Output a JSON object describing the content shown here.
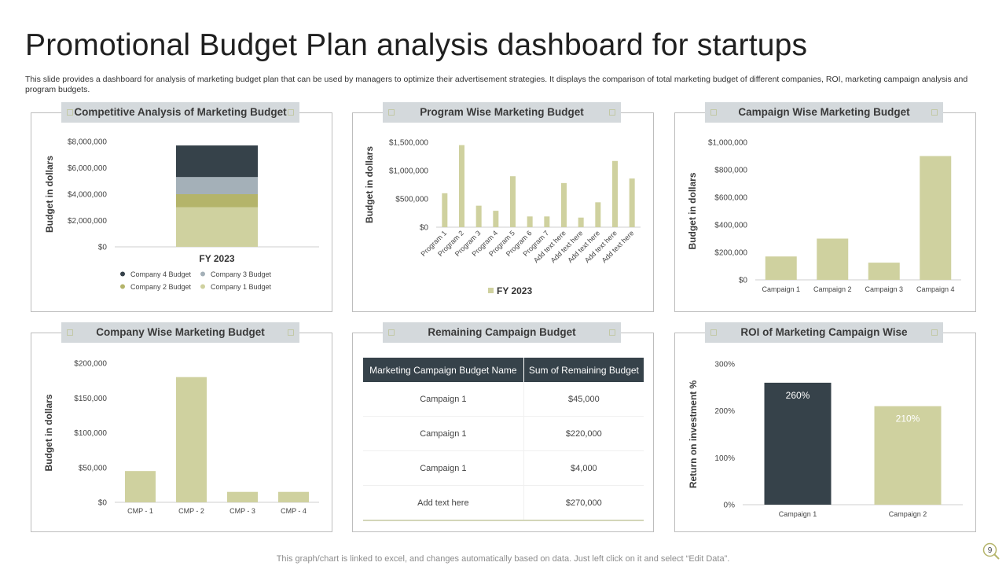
{
  "page": {
    "title": "Promotional Budget Plan analysis dashboard for startups",
    "subtitle": "This slide provides a dashboard for analysis of marketing budget plan that can be used by managers to optimize their advertisement strategies. It displays the comparison of total marketing budget of different companies, ROI, marketing campaign analysis and program budgets.",
    "footer": "This graph/chart is linked to excel,  and changes automatically based on data. Just left click on it and select “Edit Data”.",
    "page_number": "9"
  },
  "colors": {
    "khaki": "#cfd19f",
    "olive": "#b4b46a",
    "slate": "#36424a",
    "gray_blue": "#a4b0b8",
    "header_bg": "#d4d9dc"
  },
  "panels": {
    "competitive": {
      "header": "Competitive Analysis  of Marketing Budget"
    },
    "program": {
      "header": "Program Wise Marketing Budget"
    },
    "campaign": {
      "header": "Campaign Wise Marketing Budget"
    },
    "company": {
      "header": "Company Wise Marketing Budget"
    },
    "remaining": {
      "header": "Remaining Campaign Budget"
    },
    "roi": {
      "header": "ROI of Marketing Campaign Wise"
    }
  },
  "chart_data": [
    {
      "id": "competitive",
      "type": "bar",
      "stacked": true,
      "title": "Competitive Analysis  of Marketing Budget",
      "categories": [
        "FY 2023"
      ],
      "series": [
        {
          "name": "Company 1 Budget",
          "values": [
            3000000
          ],
          "color": "#cfd19f"
        },
        {
          "name": "Company 2 Budget",
          "values": [
            1000000
          ],
          "color": "#b4b46a"
        },
        {
          "name": "Company 3 Budget",
          "values": [
            1300000
          ],
          "color": "#a4b0b8"
        },
        {
          "name": "Company 4 Budget",
          "values": [
            2400000
          ],
          "color": "#36424a"
        }
      ],
      "legend_order": [
        "Company 4 Budget",
        "Company 3 Budget",
        "Company 2 Budget",
        "Company 1 Budget"
      ],
      "ylabel": "Budget in dollars",
      "ylim": [
        0,
        8000000
      ],
      "yticks": [
        0,
        2000000,
        4000000,
        6000000,
        8000000
      ],
      "ytick_labels": [
        "$0",
        "$2,000,000",
        "$4,000,000",
        "$6,000,000",
        "$8,000,000"
      ]
    },
    {
      "id": "program",
      "type": "bar",
      "title": "Program Wise Marketing Budget",
      "categories": [
        "Program 1",
        "Program 2",
        "Program 3",
        "Program 4",
        "Program 5",
        "Program 6",
        "Program 7",
        "Add text here",
        "Add text here",
        "Add text here",
        "Add text here",
        "Add text here"
      ],
      "series": [
        {
          "name": "FY 2023",
          "values": [
            600000,
            1450000,
            380000,
            290000,
            900000,
            190000,
            190000,
            780000,
            170000,
            440000,
            1170000,
            860000
          ],
          "color": "#cfd19f"
        }
      ],
      "ylabel": "Budget in dollars",
      "ylim": [
        0,
        1500000
      ],
      "yticks": [
        0,
        500000,
        1000000,
        1500000
      ],
      "ytick_labels": [
        "$0",
        "$500,000",
        "$1,000,000",
        "$1,500,000"
      ]
    },
    {
      "id": "campaign",
      "type": "bar",
      "title": "Campaign Wise Marketing Budget",
      "categories": [
        "Campaign 1",
        "Campaign 2",
        "Campaign 3",
        "Campaign 4"
      ],
      "series": [
        {
          "name": "Budget",
          "values": [
            170000,
            300000,
            125000,
            900000
          ],
          "color": "#cfd19f"
        }
      ],
      "ylabel": "Budget in dollars",
      "ylim": [
        0,
        1000000
      ],
      "yticks": [
        0,
        200000,
        400000,
        600000,
        800000,
        1000000
      ],
      "ytick_labels": [
        "$0",
        "$200,000",
        "$400,000",
        "$600,000",
        "$800,000",
        "$1,000,000"
      ]
    },
    {
      "id": "company",
      "type": "bar",
      "title": "Company Wise Marketing Budget",
      "categories": [
        "CMP - 1",
        "CMP - 2",
        "CMP - 3",
        "CMP - 4"
      ],
      "series": [
        {
          "name": "Budget",
          "values": [
            45000,
            180000,
            15000,
            15000
          ],
          "color": "#cfd19f"
        }
      ],
      "ylabel": "Budget in dollars",
      "ylim": [
        0,
        200000
      ],
      "yticks": [
        0,
        50000,
        100000,
        150000,
        200000
      ],
      "ytick_labels": [
        "$0",
        "$50,000",
        "$100,000",
        "$150,000",
        "$200,000"
      ]
    },
    {
      "id": "remaining",
      "type": "table",
      "title": "Remaining Campaign Budget",
      "columns": [
        "Marketing Campaign Budget Name",
        "Sum of Remaining Budget"
      ],
      "rows": [
        [
          "Campaign  1",
          "$45,000"
        ],
        [
          "Campaign  1",
          "$220,000"
        ],
        [
          "Campaign  1",
          "$4,000"
        ],
        [
          "Add text here",
          "$270,000"
        ]
      ]
    },
    {
      "id": "roi",
      "type": "bar",
      "title": "ROI of Marketing Campaign Wise",
      "categories": [
        "Campaign 1",
        "Campaign 2"
      ],
      "values": [
        260,
        210
      ],
      "labels": [
        "260%",
        "210%"
      ],
      "colors": [
        "#36424a",
        "#cfd19f"
      ],
      "ylabel": "Return on investment %",
      "ylim": [
        0,
        300
      ],
      "yticks": [
        0,
        100,
        200,
        300
      ],
      "ytick_labels": [
        "0%",
        "100%",
        "200%",
        "300%"
      ]
    }
  ]
}
